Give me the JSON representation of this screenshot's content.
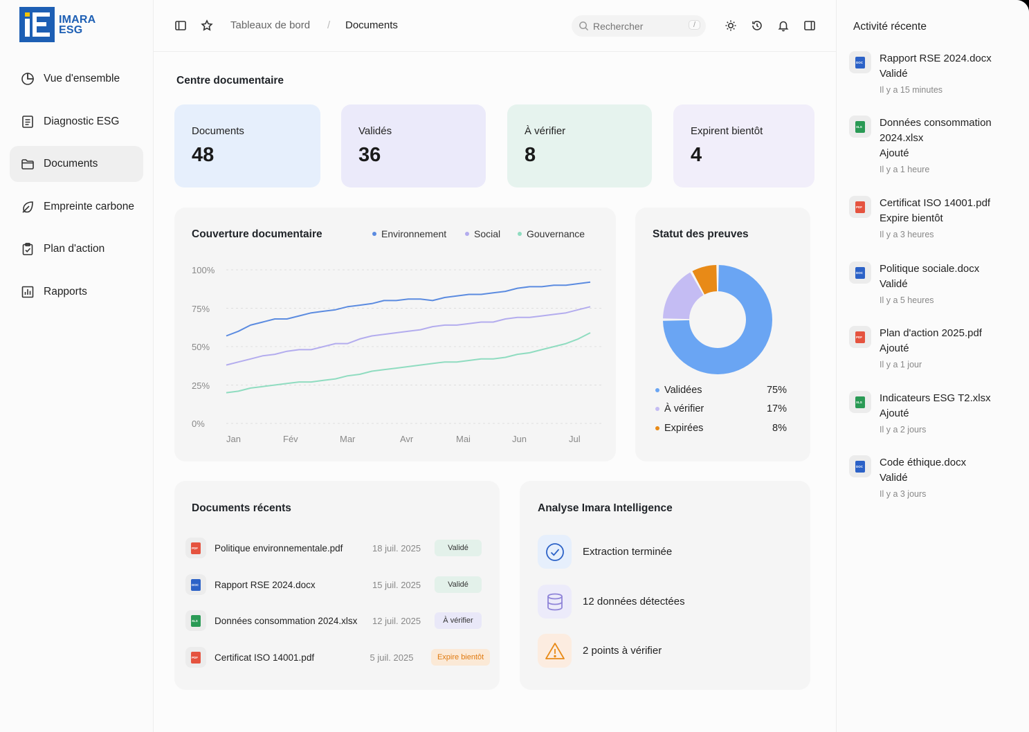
{
  "brand": {
    "line1": "IMARA",
    "line2": "ESG"
  },
  "nav": [
    {
      "label": "Vue d'ensemble",
      "icon": "pie-chart-icon"
    },
    {
      "label": "Diagnostic ESG",
      "icon": "clipboard-list-icon"
    },
    {
      "label": "Documents",
      "icon": "folder-icon",
      "active": true
    },
    {
      "label": "Empreinte carbone",
      "icon": "leaf-icon"
    },
    {
      "label": "Plan d'action",
      "icon": "clipboard-check-icon"
    },
    {
      "label": "Rapports",
      "icon": "bar-chart-icon"
    }
  ],
  "topbar": {
    "breadcrumb": [
      "Tableaux de bord",
      "/",
      "Documents"
    ],
    "search_placeholder": "Rechercher",
    "search_shortcut": "/"
  },
  "main": {
    "title": "Centre documentaire",
    "stats": [
      {
        "label": "Documents",
        "value": "48",
        "color": "#e6effc"
      },
      {
        "label": "Validés",
        "value": "36",
        "color": "#ebeafa"
      },
      {
        "label": "À vérifier",
        "value": "8",
        "color": "#e6f3ee"
      },
      {
        "label": "Expirent bientôt",
        "value": "4",
        "color": "#f1eefa"
      }
    ]
  },
  "coverage": {
    "title": "Couverture documentaire",
    "legend": [
      "Environnement",
      "Social",
      "Gouvernance"
    ]
  },
  "chart_data": [
    {
      "type": "line",
      "title": "Couverture documentaire",
      "xlabel": "",
      "ylabel": "",
      "x_ticks": [
        "Jan",
        "Fév",
        "Mar",
        "Avr",
        "Mai",
        "Jun",
        "Jul"
      ],
      "y_ticks": [
        "100%",
        "75%",
        "50%",
        "25%",
        "0%"
      ],
      "ylim": [
        0,
        100
      ],
      "grid": true,
      "legend_position": "top-right",
      "series": [
        {
          "name": "Environnement",
          "color": "#5b8be0",
          "values": [
            57,
            60,
            64,
            66,
            68,
            68,
            70,
            72,
            73,
            74,
            76,
            77,
            78,
            80,
            80,
            81,
            81,
            80,
            82,
            83,
            84,
            84,
            85,
            86,
            88,
            89,
            89,
            90,
            90,
            91,
            92
          ]
        },
        {
          "name": "Social",
          "color": "#b3acee",
          "values": [
            38,
            40,
            42,
            44,
            45,
            47,
            48,
            48,
            50,
            52,
            52,
            55,
            57,
            58,
            59,
            60,
            61,
            63,
            64,
            64,
            65,
            66,
            66,
            68,
            69,
            69,
            70,
            71,
            72,
            74,
            76
          ]
        },
        {
          "name": "Gouvernance",
          "color": "#8fdcc0",
          "values": [
            20,
            21,
            23,
            24,
            25,
            26,
            27,
            27,
            28,
            29,
            31,
            32,
            34,
            35,
            36,
            37,
            38,
            39,
            40,
            40,
            41,
            42,
            42,
            43,
            45,
            46,
            48,
            50,
            52,
            55,
            59
          ]
        }
      ]
    },
    {
      "type": "pie",
      "title": "Statut des preuves",
      "categories": [
        "Validées",
        "À vérifier",
        "Expirées"
      ],
      "values": [
        75,
        17,
        8
      ],
      "colors": [
        "#6aa5f3",
        "#c4bcf3",
        "#e88a17"
      ]
    }
  ],
  "proofs": {
    "title": "Statut des preuves",
    "legend": [
      {
        "label": "Validées",
        "pct": "75%",
        "color": "#6aa5f3"
      },
      {
        "label": "À vérifier",
        "pct": "17%",
        "color": "#c4bcf3"
      },
      {
        "label": "Expirées",
        "pct": "8%",
        "color": "#e88a17"
      }
    ]
  },
  "recent_docs": {
    "title": "Documents récents",
    "rows": [
      {
        "name": "Politique environnementale.pdf",
        "date": "18 juil. 2025",
        "status": "Validé",
        "type": "PDF"
      },
      {
        "name": "Rapport RSE 2024.docx",
        "date": "15 juil. 2025",
        "status": "Validé",
        "type": "DOC"
      },
      {
        "name": "Données consommation 2024.xlsx",
        "date": "12 juil. 2025",
        "status": "À vérifier",
        "type": "XLS"
      },
      {
        "name": "Certificat ISO 14001.pdf",
        "date": "5 juil. 2025",
        "status": "Expire bientôt",
        "type": "PDF"
      }
    ]
  },
  "ai": {
    "title": "Analyse Imara Intelligence",
    "items": [
      {
        "text": "Extraction terminée",
        "icon": "check-circle-icon"
      },
      {
        "text": "12 données détectées",
        "icon": "database-icon"
      },
      {
        "text": "2 points à vérifier",
        "icon": "warning-icon"
      }
    ]
  },
  "activity": {
    "title": "Activité récente",
    "items": [
      {
        "name": "Rapport RSE 2024.docx",
        "status": "Validé",
        "time": "Il y a 15 minutes",
        "type": "DOC"
      },
      {
        "name": "Données consommation 2024.xlsx",
        "status": "Ajouté",
        "time": "Il y a 1 heure",
        "type": "XLS"
      },
      {
        "name": "Certificat ISO 14001.pdf",
        "status": "Expire bientôt",
        "time": "Il y a 3 heures",
        "type": "PDF"
      },
      {
        "name": "Politique sociale.docx",
        "status": "Validé",
        "time": "Il y a 5 heures",
        "type": "DOC"
      },
      {
        "name": "Plan d'action 2025.pdf",
        "status": "Ajouté",
        "time": "Il y a 1 jour",
        "type": "PDF"
      },
      {
        "name": "Indicateurs ESG T2.xlsx",
        "status": "Ajouté",
        "time": "Il y a 2 jours",
        "type": "XLS"
      },
      {
        "name": "Code éthique.docx",
        "status": "Validé",
        "time": "Il y a 3 jours",
        "type": "DOC"
      }
    ]
  }
}
